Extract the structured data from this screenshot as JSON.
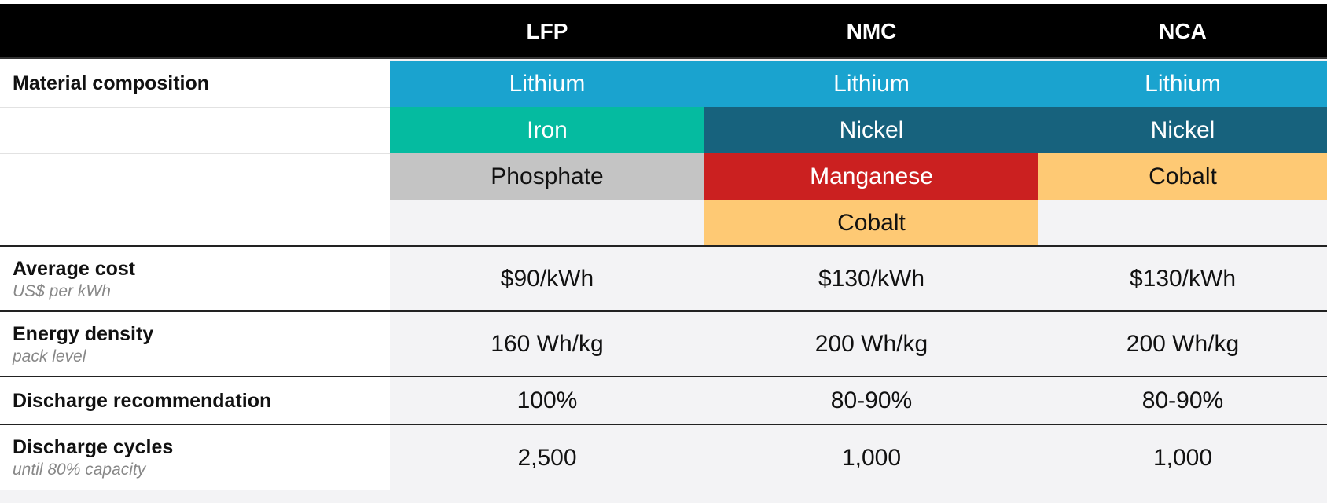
{
  "header": {
    "columns": [
      "LFP",
      "NMC",
      "NCA"
    ]
  },
  "material": {
    "label": "Material composition",
    "columns": [
      [
        {
          "name": "Lithium",
          "color": "#1aa3cf"
        },
        {
          "name": "Iron",
          "color": "#05bba0"
        },
        {
          "name": "Phosphate",
          "color": "#c4c4c4"
        }
      ],
      [
        {
          "name": "Lithium",
          "color": "#1aa3cf"
        },
        {
          "name": "Nickel",
          "color": "#17627d"
        },
        {
          "name": "Manganese",
          "color": "#cb2020"
        },
        {
          "name": "Cobalt",
          "color": "#fec974"
        }
      ],
      [
        {
          "name": "Lithium",
          "color": "#1aa3cf"
        },
        {
          "name": "Nickel",
          "color": "#17627d"
        },
        {
          "name": "Cobalt",
          "color": "#fec974"
        }
      ]
    ]
  },
  "rows": [
    {
      "label": "Average cost",
      "sublabel": "US$ per kWh",
      "values": [
        "$90/kWh",
        "$130/kWh",
        "$130/kWh"
      ]
    },
    {
      "label": "Energy density",
      "sublabel": "pack level",
      "values": [
        "160 Wh/kg",
        "200 Wh/kg",
        "200 Wh/kg"
      ]
    },
    {
      "label": "Discharge recommendation",
      "values": [
        "100%",
        "80-90%",
        "80-90%"
      ]
    },
    {
      "label": "Discharge cycles",
      "sublabel": "until 80% capacity",
      "values": [
        "2,500",
        "1,000",
        "1,000"
      ]
    }
  ]
}
